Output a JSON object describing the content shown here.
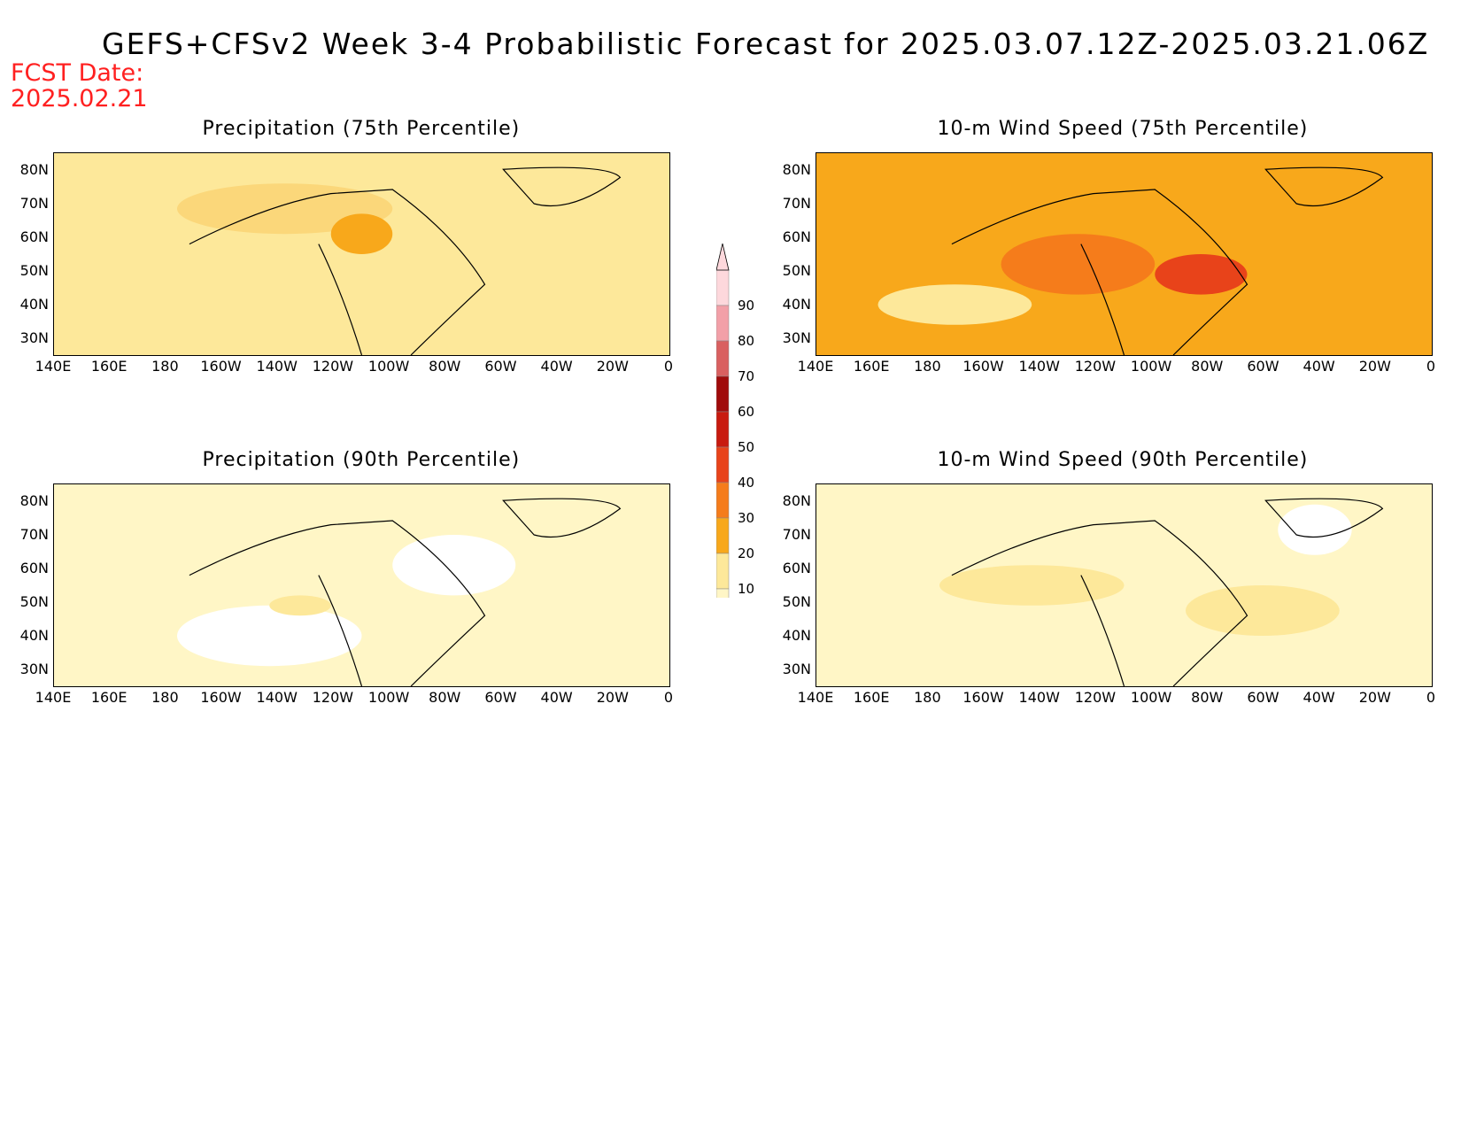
{
  "title": "GEFS+CFSv2 Week 3-4 Probabilistic Forecast for 2025.03.07.12Z-2025.03.21.06Z",
  "fcst_date_label": "FCST Date:",
  "fcst_date": "2025.02.21",
  "lat_labels": [
    "80N",
    "70N",
    "60N",
    "50N",
    "40N",
    "30N"
  ],
  "lon_labels": [
    "140E",
    "160E",
    "180",
    "160W",
    "140W",
    "120W",
    "100W",
    "80W",
    "60W",
    "40W",
    "20W",
    "0"
  ],
  "panels": [
    {
      "title": "Precipitation (75th Percentile)",
      "base": "#fde89a",
      "patches": [
        [
          "#fbd77a",
          0.2,
          0.15,
          0.35,
          0.25
        ],
        [
          "#f8a81b",
          0.45,
          0.3,
          0.1,
          0.2
        ],
        [
          "#fde89a",
          0.3,
          0.55,
          0.25,
          0.25
        ]
      ]
    },
    {
      "title": "10-m Wind Speed (75th Percentile)",
      "base": "#f8a81b",
      "patches": [
        [
          "#f57c1b",
          0.3,
          0.4,
          0.25,
          0.3
        ],
        [
          "#e8431a",
          0.55,
          0.5,
          0.15,
          0.2
        ],
        [
          "#fde89a",
          0.1,
          0.65,
          0.25,
          0.2
        ]
      ]
    },
    {
      "title": "Precipitation (90th Percentile)",
      "base": "#fff6c6",
      "patches": [
        [
          "#ffffff",
          0.2,
          0.6,
          0.3,
          0.3
        ],
        [
          "#ffffff",
          0.55,
          0.25,
          0.2,
          0.3
        ],
        [
          "#fde89a",
          0.35,
          0.55,
          0.1,
          0.1
        ]
      ]
    },
    {
      "title": "10-m Wind Speed (90th Percentile)",
      "base": "#fff6c6",
      "patches": [
        [
          "#fde89a",
          0.2,
          0.4,
          0.3,
          0.2
        ],
        [
          "#ffffff",
          0.75,
          0.1,
          0.12,
          0.25
        ],
        [
          "#fde89a",
          0.6,
          0.5,
          0.25,
          0.25
        ]
      ]
    }
  ],
  "colorbar": {
    "levels": [
      "10",
      "20",
      "30",
      "40",
      "50",
      "60",
      "70",
      "80",
      "90"
    ],
    "colors": [
      "#fff6c6",
      "#fde89a",
      "#f8a81b",
      "#f57c1b",
      "#e8431a",
      "#c81a0f",
      "#a00b0b",
      "#d96060",
      "#f2a0a8",
      "#fdd8dc"
    ]
  }
}
